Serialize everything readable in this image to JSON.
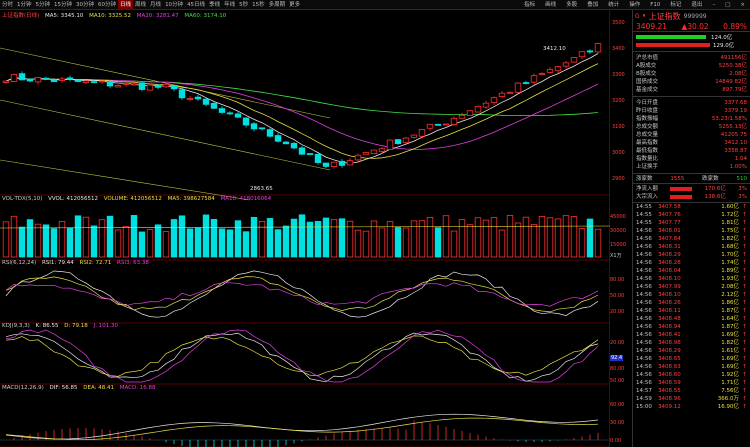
{
  "toolbar": {
    "periods": [
      "分时",
      "1分钟",
      "5分钟",
      "15分钟",
      "30分钟",
      "60分钟",
      "日线",
      "周线",
      "月线",
      "10分钟",
      "45日线",
      "季线",
      "年线",
      "5秒",
      "15秒",
      "多周期",
      "更多"
    ],
    "active_period": 6,
    "right_items": [
      "指标",
      "画线",
      "多股",
      "叠加",
      "统计",
      "操作",
      "F10",
      "标记",
      "退出"
    ],
    "window_buttons": [
      "–",
      "□",
      "×"
    ]
  },
  "main_panel": {
    "title": "上证指数(日线)",
    "ma_labels": [
      "MA5: 3345.10",
      "MA10: 3325.52",
      "MA20: 3281.47",
      "MA60: 3174.10"
    ],
    "high_annotation": "3412.10",
    "low_annotation": "2863.65",
    "price_axis": [
      "3500",
      "3400",
      "3300",
      "3200",
      "3100",
      "3000",
      "2900"
    ]
  },
  "vol_panel": {
    "labels": [
      "VOL-TDX(5,10)",
      "VVOL: 412056512",
      "VOLUME: 412056512",
      "MA5: 398627584",
      "MA10: 418016064"
    ],
    "axis": [
      "45000",
      "30000",
      "15000"
    ],
    "unit": "X1万"
  },
  "rsi_panel": {
    "labels": [
      "RSI(6,12,24)",
      "RSI1: 79.44",
      "RSI2: 72.71",
      "RSI3: 63.38"
    ],
    "axis": [
      "80.00",
      "50.00",
      "20.00"
    ]
  },
  "kdj_panel": {
    "labels": [
      "KDJ(9,3,3)",
      "K: 86.55",
      "D: 79.18",
      "J: 101.30"
    ],
    "axis": [
      "80.00",
      "50.00",
      "20.00"
    ],
    "badge": "92.4"
  },
  "macd_panel": {
    "labels": [
      "MACD(12,26,9)",
      "DIF: 56.85",
      "DEA: 48.41",
      "MACD: 16.88"
    ],
    "axis": [
      "60.00",
      "30.00",
      "0.00"
    ]
  },
  "quote": {
    "tag": "G",
    "bullet": "⏸",
    "name": "上证指数",
    "code": "999999",
    "price": "3409.21",
    "change": "▲30.02",
    "pct": "0.89%",
    "buy_bar": "124.0亿",
    "sell_bar": "129.0亿"
  },
  "stats_a": [
    {
      "k": "沪总市值",
      "v": "491156亿"
    },
    {
      "k": "A股成交",
      "v": "5250.38亿"
    },
    {
      "k": "B股成交",
      "v": "2.08亿"
    },
    {
      "k": "国债成交",
      "v": "14849.82亿"
    },
    {
      "k": "基金成交",
      "v": "897.79亿"
    }
  ],
  "stats_b": [
    {
      "k": "今日开盘",
      "v": "3377.68"
    },
    {
      "k": "昨日收盘",
      "v": "3379.19"
    },
    {
      "k": "指数振幅",
      "v": "53.23/1.58%"
    },
    {
      "k": "总成交额",
      "v": "5255.13亿"
    },
    {
      "k": "总成交量",
      "v": "41205.75"
    },
    {
      "k": "最高指数",
      "v": "3412.10"
    },
    {
      "k": "最低指数",
      "v": "3358.87"
    },
    {
      "k": "指数量比",
      "v": "1.04"
    },
    {
      "k": "上证换手",
      "v": "1.00%"
    }
  ],
  "updown": {
    "up_label": "涨家数",
    "up": "1555",
    "down_label": "跌家数",
    "down": "510"
  },
  "flows": [
    {
      "k": "净流入额",
      "v": "170.6亿",
      "p": "3%"
    },
    {
      "k": "大宗流入",
      "v": "138.6亿",
      "p": "3%"
    }
  ],
  "trades": [
    {
      "t": "14:55",
      "p": "3407.58",
      "v": "1.60亿",
      "d": "↑"
    },
    {
      "t": "14:55",
      "p": "3407.76",
      "v": "1.72亿",
      "d": "↑"
    },
    {
      "t": "14:55",
      "p": "3407.77",
      "v": "1.81亿",
      "d": "↑"
    },
    {
      "t": "14:56",
      "p": "3408.01",
      "v": "1.75亿",
      "d": "↑"
    },
    {
      "t": "14:56",
      "p": "3407.84",
      "v": "1.82亿",
      "d": "↑"
    },
    {
      "t": "14:56",
      "p": "3408.31",
      "v": "1.68亿",
      "d": "↑"
    },
    {
      "t": "14:56",
      "p": "3408.29",
      "v": "1.70亿",
      "d": "↑"
    },
    {
      "t": "14:56",
      "p": "3408.28",
      "v": "1.74亿",
      "d": "↑"
    },
    {
      "t": "14:56",
      "p": "3408.04",
      "v": "1.89亿",
      "d": "↑"
    },
    {
      "t": "14:56",
      "p": "3408.10",
      "v": "1.93亿",
      "d": "↑"
    },
    {
      "t": "14:56",
      "p": "3407.99",
      "v": "2.08亿",
      "d": "↑"
    },
    {
      "t": "14:56",
      "p": "3408.10",
      "v": "2.12亿",
      "d": "↑"
    },
    {
      "t": "14:56",
      "p": "3408.26",
      "v": "1.86亿",
      "d": "↑"
    },
    {
      "t": "14:56",
      "p": "3408.11",
      "v": "1.87亿",
      "d": "↑"
    },
    {
      "t": "14:56",
      "p": "3408.48",
      "v": "1.64亿",
      "d": "↑"
    },
    {
      "t": "14:56",
      "p": "3408.94",
      "v": "1.87亿",
      "d": "↑"
    },
    {
      "t": "14:56",
      "p": "3408.41",
      "v": "1.69亿",
      "d": "↑"
    },
    {
      "t": "14:56",
      "p": "3408.98",
      "v": "1.82亿",
      "d": "↑"
    },
    {
      "t": "14:56",
      "p": "3408.29",
      "v": "1.61亿",
      "d": "↑"
    },
    {
      "t": "14:56",
      "p": "3408.65",
      "v": "1.69亿",
      "d": "↑"
    },
    {
      "t": "14:56",
      "p": "3408.63",
      "v": "1.69亿",
      "d": "↑"
    },
    {
      "t": "14:56",
      "p": "3408.60",
      "v": "1.92亿",
      "d": "↑"
    },
    {
      "t": "14:56",
      "p": "3408.59",
      "v": "1.71亿",
      "d": "↑"
    },
    {
      "t": "14:57",
      "p": "3408.55",
      "v": "7.56亿",
      "d": "↑"
    },
    {
      "t": "14:59",
      "p": "3408.96",
      "v": "366.0万",
      "d": "↑"
    },
    {
      "t": "15:00",
      "p": "3409.12",
      "v": "16.90亿",
      "d": "↑"
    }
  ],
  "colors": {
    "up": "#ff3030",
    "down": "#00e0e0",
    "ma5": "#e8e8e8",
    "ma10": "#e8e040",
    "ma20": "#e040e0",
    "ma60": "#40e040"
  }
}
